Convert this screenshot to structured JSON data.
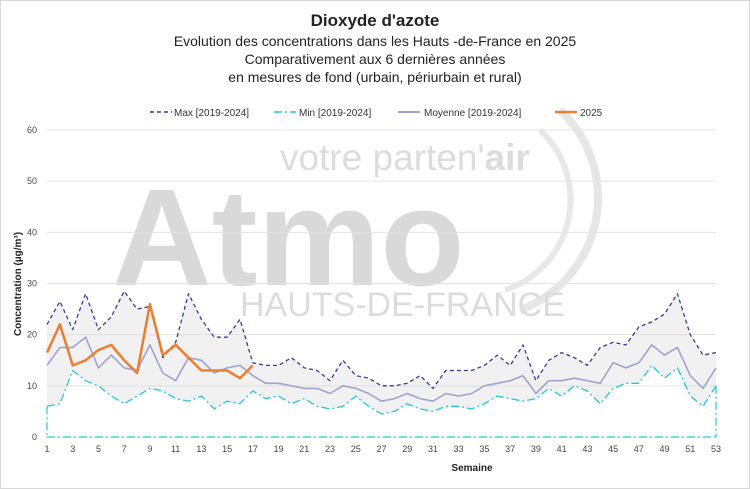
{
  "chart_data": {
    "type": "line",
    "title": "Dioxyde d'azote",
    "subtitle_lines": [
      "Evolution des concentrations dans les Hauts -de-France en 2025",
      "Comparativement aux 6 dernières années",
      "en mesures de fond (urbain, périurbain et rural)"
    ],
    "xlabel": "Semaine",
    "ylabel": "Concentration (µg/m³)",
    "ylim": [
      0,
      60
    ],
    "yticks": [
      0,
      10,
      20,
      30,
      40,
      50,
      60
    ],
    "xlim": [
      1,
      53
    ],
    "xticks": [
      1,
      3,
      5,
      7,
      9,
      11,
      13,
      15,
      17,
      19,
      21,
      23,
      25,
      27,
      29,
      31,
      33,
      35,
      37,
      39,
      41,
      43,
      45,
      47,
      49,
      51,
      53
    ],
    "grid": "horizontal",
    "legend_position": "top",
    "series": [
      {
        "name": "Max [2019-2024]",
        "color": "#2f3f94",
        "style": "dashed",
        "x": [
          1,
          2,
          3,
          4,
          5,
          6,
          7,
          8,
          9,
          10,
          11,
          12,
          13,
          14,
          15,
          16,
          17,
          18,
          19,
          20,
          21,
          22,
          23,
          24,
          25,
          26,
          27,
          28,
          29,
          30,
          31,
          32,
          33,
          34,
          35,
          36,
          37,
          38,
          39,
          40,
          41,
          42,
          43,
          44,
          45,
          46,
          47,
          48,
          49,
          50,
          51,
          52,
          53
        ],
        "values": [
          22,
          26.5,
          21,
          28,
          21,
          23.5,
          28.5,
          25,
          25.5,
          15.5,
          18.5,
          28,
          23,
          19.5,
          19.5,
          23,
          14.5,
          14,
          14,
          15.5,
          13.5,
          13,
          11,
          15,
          12,
          11.5,
          10,
          10,
          10.5,
          12,
          9.5,
          13,
          13,
          13,
          14,
          16,
          14,
          18,
          11,
          15,
          16.5,
          15.5,
          14,
          17.5,
          18.5,
          18,
          21.5,
          22.5,
          24,
          28,
          20,
          16,
          16.5
        ]
      },
      {
        "name": "Min [2019-2024]",
        "color": "#26c6da",
        "style": "dashdot",
        "x": [
          1,
          2,
          3,
          4,
          5,
          6,
          7,
          8,
          9,
          10,
          11,
          12,
          13,
          14,
          15,
          16,
          17,
          18,
          19,
          20,
          21,
          22,
          23,
          24,
          25,
          26,
          27,
          28,
          29,
          30,
          31,
          32,
          33,
          34,
          35,
          36,
          37,
          38,
          39,
          40,
          41,
          42,
          43,
          44,
          45,
          46,
          47,
          48,
          49,
          50,
          51,
          52,
          53
        ],
        "values": [
          6,
          6.5,
          13,
          11,
          10,
          8,
          6.5,
          8,
          9.5,
          9,
          7.5,
          7,
          8,
          5.5,
          7,
          6.5,
          9,
          7.5,
          8,
          6.5,
          7.5,
          6,
          5.5,
          6,
          8,
          6,
          4.5,
          5,
          6.5,
          5.5,
          5,
          6,
          6,
          5.5,
          6.5,
          8,
          7.5,
          7,
          7.5,
          9.5,
          8,
          10,
          9,
          6.5,
          9.5,
          10.5,
          10.5,
          14,
          11.5,
          13.5,
          8,
          6,
          10
        ]
      },
      {
        "name": "Moyenne [2019-2024]",
        "color": "#9fa3cf",
        "style": "solid",
        "x": [
          1,
          2,
          3,
          4,
          5,
          6,
          7,
          8,
          9,
          10,
          11,
          12,
          13,
          14,
          15,
          16,
          17,
          18,
          19,
          20,
          21,
          22,
          23,
          24,
          25,
          26,
          27,
          28,
          29,
          30,
          31,
          32,
          33,
          34,
          35,
          36,
          37,
          38,
          39,
          40,
          41,
          42,
          43,
          44,
          45,
          46,
          47,
          48,
          49,
          50,
          51,
          52,
          53
        ],
        "values": [
          14,
          17.5,
          17.5,
          19.5,
          13.5,
          16,
          13.5,
          13,
          18,
          12.5,
          11,
          15.5,
          15,
          12.5,
          13.5,
          14,
          12,
          10.5,
          10.5,
          10,
          9.5,
          9.5,
          8.5,
          10,
          9.5,
          8.5,
          7,
          7.5,
          8.5,
          7.5,
          7,
          8.5,
          8,
          8.5,
          10,
          10.5,
          11,
          12,
          8.5,
          11,
          11,
          11.5,
          11,
          10.5,
          14.5,
          13.5,
          14.5,
          18,
          16,
          17.5,
          12,
          9.5,
          13.5
        ]
      },
      {
        "name": "2025",
        "color": "#ed7d31",
        "style": "solid",
        "x": [
          1,
          2,
          3,
          4,
          5,
          6,
          7,
          8,
          9,
          10,
          11,
          12,
          13,
          14,
          15,
          16,
          17
        ],
        "values": [
          16.5,
          22,
          14,
          15,
          17,
          18,
          15,
          12.5,
          26,
          16,
          18,
          15.5,
          13,
          13,
          13,
          11.5,
          14
        ]
      }
    ]
  },
  "watermark": {
    "logo_text": "Atmo",
    "tagline_main": "votre parten'",
    "tagline_accent": "air",
    "region_text": "HAUTS-DE-FRANCE"
  }
}
